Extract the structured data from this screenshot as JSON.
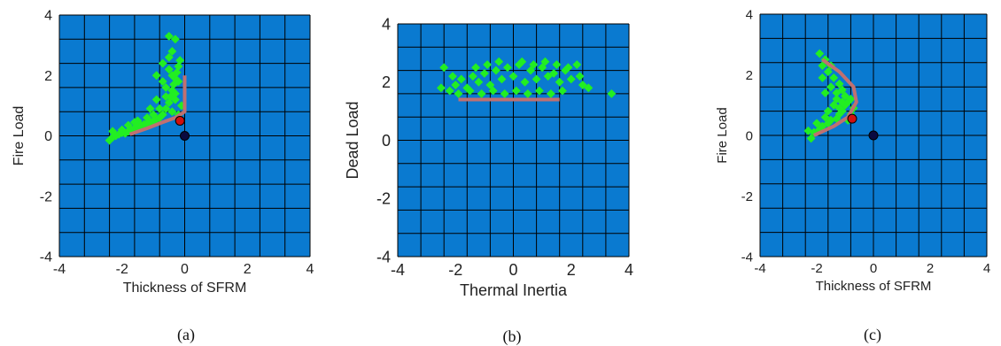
{
  "chart_data": [
    {
      "type": "scatter",
      "caption": "(a)",
      "xlabel": "Thickness of SFRM",
      "ylabel": "Fire Load",
      "xlim": [
        -4,
        4
      ],
      "ylim": [
        -4,
        4
      ],
      "xticks": [
        -4,
        -2,
        0,
        2,
        4
      ],
      "yticks": [
        -4,
        -2,
        0,
        2,
        4
      ],
      "grid": true,
      "background_color": "#0a7ad0",
      "grid_color": "#000000",
      "series": [
        {
          "color": "#22ee22",
          "points": [
            [
              -2.4,
              -0.15
            ],
            [
              -2.3,
              -0.05
            ],
            [
              -2.2,
              0.0
            ],
            [
              -2.1,
              0.05
            ],
            [
              -2.0,
              0.1
            ],
            [
              -1.9,
              0.08
            ],
            [
              -1.8,
              0.15
            ],
            [
              -1.7,
              0.2
            ],
            [
              -1.6,
              0.25
            ],
            [
              -1.5,
              0.3
            ],
            [
              -1.4,
              0.35
            ],
            [
              -1.3,
              0.38
            ],
            [
              -1.2,
              0.42
            ],
            [
              -1.1,
              0.45
            ],
            [
              -1.0,
              0.5
            ],
            [
              -0.9,
              0.55
            ],
            [
              -0.8,
              0.6
            ],
            [
              -0.7,
              0.7
            ],
            [
              -0.6,
              0.9
            ],
            [
              -0.5,
              1.1
            ],
            [
              -0.45,
              1.3
            ],
            [
              -0.4,
              1.5
            ],
            [
              -0.35,
              1.7
            ],
            [
              -0.3,
              1.9
            ],
            [
              -0.25,
              2.1
            ],
            [
              -0.2,
              2.3
            ],
            [
              -0.15,
              2.5
            ],
            [
              -0.5,
              2.6
            ],
            [
              -0.7,
              2.4
            ],
            [
              -0.4,
              2.0
            ],
            [
              -0.6,
              1.6
            ],
            [
              -0.3,
              1.4
            ],
            [
              -0.8,
              0.9
            ],
            [
              -1.0,
              0.7
            ],
            [
              -1.2,
              0.6
            ],
            [
              -0.9,
              1.2
            ],
            [
              -0.7,
              1.8
            ],
            [
              -0.5,
              2.2
            ],
            [
              -0.2,
              1.8
            ],
            [
              -0.3,
              1.2
            ],
            [
              -0.1,
              1.0
            ],
            [
              -0.4,
              0.8
            ],
            [
              -0.5,
              3.3
            ],
            [
              -0.3,
              3.2
            ],
            [
              -0.9,
              2.0
            ],
            [
              -1.1,
              0.9
            ],
            [
              -1.5,
              0.5
            ],
            [
              -1.8,
              0.35
            ],
            [
              -2.0,
              0.2
            ],
            [
              -2.3,
              0.15
            ],
            [
              -1.6,
              0.45
            ],
            [
              -0.2,
              0.7
            ],
            [
              -0.6,
              1.3
            ],
            [
              -0.4,
              2.8
            ]
          ]
        }
      ],
      "curves": [
        {
          "color": "#c07070",
          "points": [
            [
              -1.75,
              0.05
            ],
            [
              -1.2,
              0.25
            ],
            [
              -0.7,
              0.45
            ],
            [
              -0.3,
              0.6
            ],
            [
              0.0,
              0.8
            ],
            [
              0.0,
              2.0
            ]
          ]
        }
      ],
      "markers": [
        {
          "color": "#d01010",
          "x": -0.15,
          "y": 0.5
        },
        {
          "color": "#0a0a40",
          "x": 0.0,
          "y": 0.0
        }
      ]
    },
    {
      "type": "scatter",
      "caption": "(b)",
      "xlabel": "Thermal Inertia",
      "ylabel": "Dead Load",
      "xlim": [
        -4,
        4
      ],
      "ylim": [
        -4,
        4
      ],
      "xticks": [
        -4,
        -2,
        0,
        2,
        4
      ],
      "yticks": [
        -4,
        -2,
        0,
        2,
        4
      ],
      "grid": true,
      "background_color": "#0a7ad0",
      "grid_color": "#000000",
      "series": [
        {
          "color": "#22ee22",
          "points": [
            [
              -2.4,
              2.5
            ],
            [
              -2.5,
              1.8
            ],
            [
              -2.2,
              1.7
            ],
            [
              -2.0,
              1.9
            ],
            [
              -1.8,
              2.1
            ],
            [
              -1.6,
              1.8
            ],
            [
              -1.4,
              2.2
            ],
            [
              -1.2,
              2.0
            ],
            [
              -1.0,
              2.3
            ],
            [
              -0.8,
              1.9
            ],
            [
              -0.6,
              2.4
            ],
            [
              -0.4,
              2.1
            ],
            [
              -0.2,
              2.5
            ],
            [
              0.0,
              2.2
            ],
            [
              0.2,
              2.6
            ],
            [
              0.4,
              2.0
            ],
            [
              0.6,
              2.4
            ],
            [
              0.8,
              2.1
            ],
            [
              1.0,
              2.5
            ],
            [
              1.2,
              2.2
            ],
            [
              1.4,
              2.3
            ],
            [
              1.6,
              2.0
            ],
            [
              1.8,
              2.4
            ],
            [
              2.0,
              2.1
            ],
            [
              2.2,
              2.6
            ],
            [
              2.4,
              1.9
            ],
            [
              2.6,
              1.8
            ],
            [
              3.4,
              1.6
            ],
            [
              -1.9,
              1.6
            ],
            [
              -1.5,
              1.7
            ],
            [
              -1.1,
              1.6
            ],
            [
              -0.7,
              1.7
            ],
            [
              -0.3,
              1.6
            ],
            [
              0.1,
              1.7
            ],
            [
              0.5,
              1.6
            ],
            [
              0.9,
              1.7
            ],
            [
              1.3,
              1.6
            ],
            [
              1.7,
              1.7
            ],
            [
              -0.9,
              2.6
            ],
            [
              -0.5,
              2.7
            ],
            [
              0.3,
              2.7
            ],
            [
              0.7,
              2.6
            ],
            [
              1.1,
              2.7
            ],
            [
              1.5,
              2.6
            ],
            [
              -1.3,
              2.5
            ],
            [
              1.9,
              2.5
            ],
            [
              2.3,
              2.2
            ],
            [
              -2.1,
              2.2
            ]
          ]
        }
      ],
      "curves": [
        {
          "color": "#c07070",
          "points": [
            [
              -1.9,
              1.4
            ],
            [
              1.6,
              1.4
            ]
          ]
        }
      ],
      "markers": []
    },
    {
      "type": "scatter",
      "caption": "(c)",
      "xlabel": "Thickness of SFRM",
      "ylabel": "Fire Load",
      "xlim": [
        -4,
        4
      ],
      "ylim": [
        -4,
        4
      ],
      "xticks": [
        -4,
        -2,
        0,
        2,
        4
      ],
      "yticks": [
        -4,
        -2,
        0,
        2,
        4
      ],
      "grid": true,
      "background_color": "#0a7ad0",
      "grid_color": "#000000",
      "series": [
        {
          "color": "#22ee22",
          "points": [
            [
              -2.2,
              -0.1
            ],
            [
              -2.1,
              0.1
            ],
            [
              -2.3,
              0.15
            ],
            [
              -1.9,
              0.2
            ],
            [
              -1.8,
              0.3
            ],
            [
              -1.6,
              0.4
            ],
            [
              -1.5,
              0.5
            ],
            [
              -1.3,
              0.55
            ],
            [
              -1.2,
              0.7
            ],
            [
              -1.1,
              0.8
            ],
            [
              -1.0,
              1.0
            ],
            [
              -0.9,
              1.1
            ],
            [
              -1.0,
              1.3
            ],
            [
              -1.1,
              1.5
            ],
            [
              -1.2,
              1.7
            ],
            [
              -1.4,
              1.9
            ],
            [
              -1.6,
              2.1
            ],
            [
              -1.8,
              2.3
            ],
            [
              -1.9,
              2.7
            ],
            [
              -1.7,
              2.5
            ],
            [
              -1.5,
              1.6
            ],
            [
              -1.3,
              1.2
            ],
            [
              -1.2,
              0.9
            ],
            [
              -0.8,
              0.7
            ],
            [
              -0.7,
              0.9
            ],
            [
              -0.8,
              1.2
            ],
            [
              -1.4,
              1.0
            ],
            [
              -1.6,
              0.8
            ],
            [
              -1.7,
              0.6
            ],
            [
              -2.0,
              0.4
            ],
            [
              -1.5,
              2.3
            ],
            [
              -1.3,
              1.4
            ],
            [
              -1.1,
              1.1
            ],
            [
              -0.9,
              0.5
            ],
            [
              -1.8,
              1.9
            ],
            [
              -1.7,
              1.4
            ]
          ]
        }
      ],
      "curves": [
        {
          "color": "#c07070",
          "points": [
            [
              -2.1,
              0.0
            ],
            [
              -1.4,
              0.3
            ],
            [
              -0.9,
              0.6
            ],
            [
              -0.6,
              1.1
            ],
            [
              -0.7,
              1.6
            ],
            [
              -1.2,
              2.1
            ],
            [
              -1.8,
              2.5
            ]
          ]
        }
      ],
      "markers": [
        {
          "color": "#d01010",
          "x": -0.75,
          "y": 0.55
        },
        {
          "color": "#0a0a40",
          "x": 0.0,
          "y": 0.0
        }
      ]
    }
  ]
}
